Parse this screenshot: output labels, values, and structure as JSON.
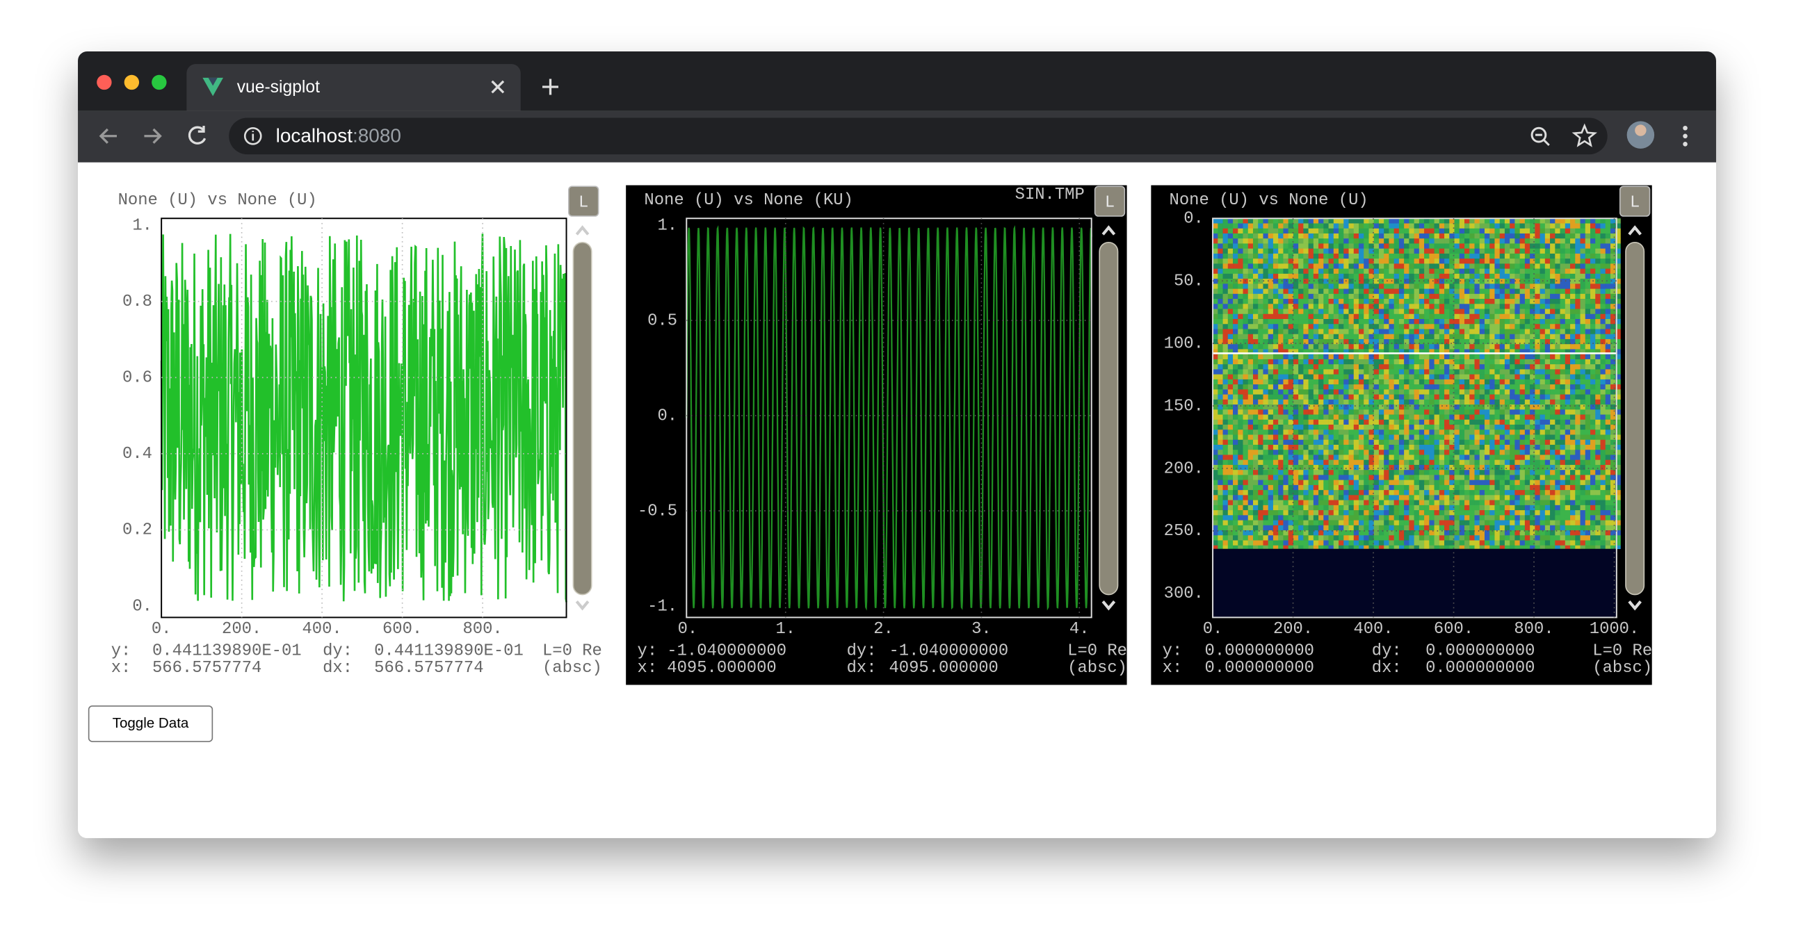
{
  "browser": {
    "tab_title": "vue-sigplot",
    "url_host": "localhost",
    "url_port": ":8080"
  },
  "plots": [
    {
      "title": "None  (U)  vs  None  (U)",
      "button": "L",
      "yticks": [
        "1.",
        "0.8",
        "0.6",
        "0.4",
        "0.2",
        "0."
      ],
      "xticks": [
        "0.",
        "200.",
        "400.",
        "600.",
        "800."
      ],
      "readout": {
        "y_label": "y:",
        "y": "0.441139890E-01",
        "dy_label": "dy:",
        "dy": "0.441139890E-01",
        "mode": "L=0 Re",
        "x_label": "x:",
        "x": "566.5757774",
        "dx_label": "dx:",
        "dx": "566.5757774",
        "axis": "(absc)"
      }
    },
    {
      "title": "None  (U)  vs  None  (KU)",
      "file": "SIN.TMP",
      "button": "L",
      "yticks": [
        "1.",
        "0.5",
        "0.",
        "-0.5",
        "-1."
      ],
      "xticks": [
        "0.",
        "1.",
        "2.",
        "3.",
        "4."
      ],
      "readout": {
        "y_label": "y:",
        "y": "-1.040000000",
        "dy_label": "dy:",
        "dy": "-1.040000000",
        "mode": "L=0 Re",
        "x_label": "x:",
        "x": "4095.000000",
        "dx_label": "dx:",
        "dx": "4095.000000",
        "axis": "(absc)"
      }
    },
    {
      "title": "None  (U)  vs  None  (U)",
      "button": "L",
      "yticks": [
        "0.",
        "50.",
        "100.",
        "150.",
        "200.",
        "250.",
        "300."
      ],
      "xticks": [
        "0.",
        "200.",
        "400.",
        "600.",
        "800.",
        "1000."
      ],
      "readout": {
        "y_label": "y:",
        "y": "0.000000000",
        "dy_label": "dy:",
        "dy": "0.000000000",
        "mode": "L=0 Re",
        "x_label": "x:",
        "x": "0.000000000",
        "dx_label": "dx:",
        "dx": "0.000000000",
        "axis": "(absc)"
      }
    }
  ],
  "toggle_button": "Toggle Data"
}
